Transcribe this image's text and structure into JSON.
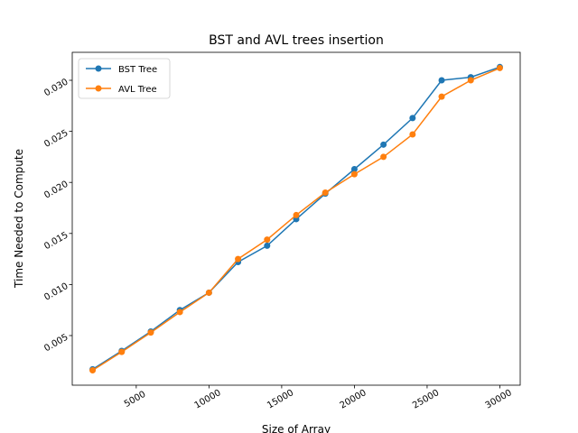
{
  "chart_data": {
    "type": "line",
    "title": "BST and AVL trees insertion",
    "x_label": "Size of Array",
    "y_label": "Time Needed to Compute",
    "x": [
      2000,
      4000,
      6000,
      8000,
      10000,
      12000,
      14000,
      16000,
      18000,
      20000,
      22000,
      24000,
      26000,
      28000,
      30000
    ],
    "series": [
      {
        "name": "BST Tree",
        "color": "#1f77b4",
        "values": [
          0.0017,
          0.0035,
          0.0054,
          0.0075,
          0.0092,
          0.0122,
          0.0138,
          0.0164,
          0.0189,
          0.0213,
          0.0237,
          0.0263,
          0.03,
          0.0303,
          0.0313
        ]
      },
      {
        "name": "AVL Tree",
        "color": "#ff7f0e",
        "values": [
          0.0016,
          0.0034,
          0.0053,
          0.0073,
          0.0092,
          0.0125,
          0.0144,
          0.0168,
          0.019,
          0.0208,
          0.0225,
          0.0247,
          0.0284,
          0.03,
          0.0312
        ]
      }
    ],
    "xlim": [
      600,
      31400
    ],
    "xticks": [
      5000,
      10000,
      15000,
      20000,
      25000,
      30000
    ],
    "ylim": [
      0.00014,
      0.03274
    ],
    "yticks": [
      0.005,
      {
        "value": 0.01,
        "label": "0.010"
      },
      0.015,
      {
        "value": 0.02,
        "label": "0.020"
      },
      0.025,
      {
        "value": 0.03,
        "label": "0.030"
      }
    ],
    "legend": "upper left",
    "grid": false
  }
}
